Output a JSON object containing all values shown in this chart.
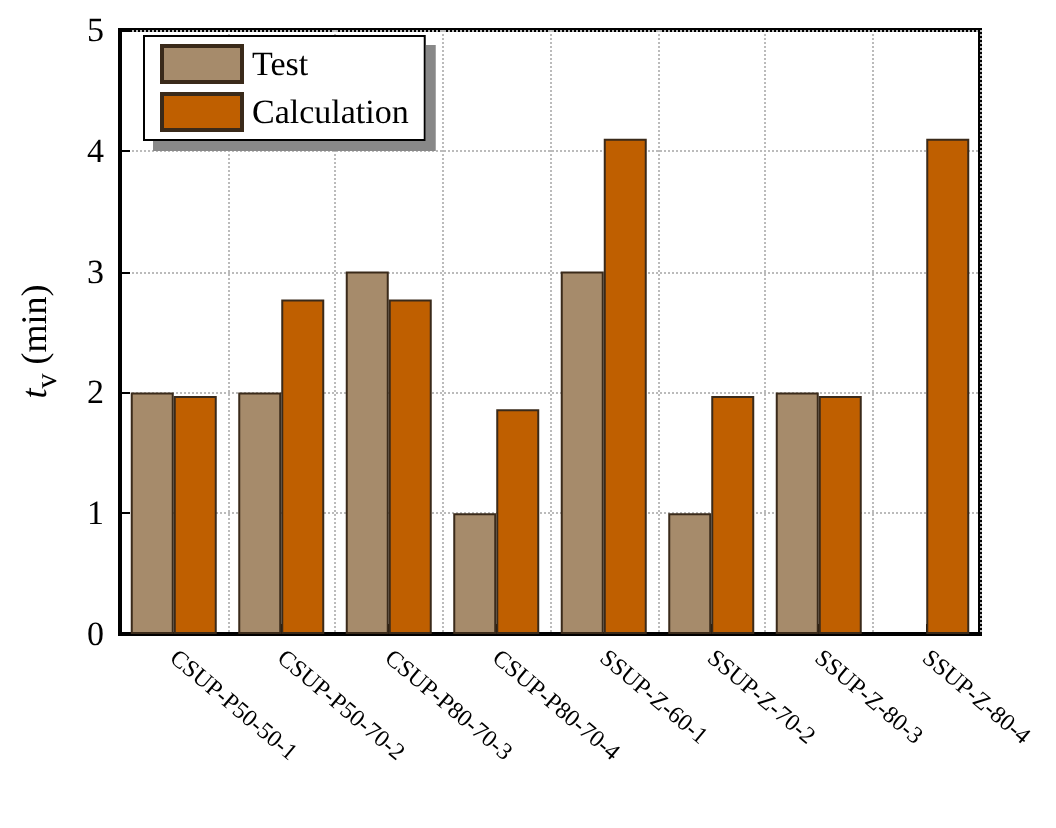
{
  "chart_data": {
    "type": "bar",
    "ylabel": "t$_{v}$ (min)",
    "categories": [
      "CSUP-P50-50-1",
      "CSUP-P50-70-2",
      "CSUP-P80-70-3",
      "CSUP-P80-70-4",
      "SSUP-Z-60-1",
      "SSUP-Z-70-2",
      "SSUP-Z-80-3",
      "SSUP-Z-80-4"
    ],
    "series": [
      {
        "name": "Test",
        "color": "#a68b6b",
        "values": [
          2,
          2,
          3,
          1,
          3,
          1,
          2,
          null
        ]
      },
      {
        "name": "Calculation",
        "color": "#bf5f00",
        "values": [
          1.97,
          2.77,
          2.77,
          1.86,
          4.1,
          1.97,
          1.97,
          4.1
        ]
      }
    ],
    "ylim": [
      0,
      5
    ],
    "yticks": [
      0,
      1,
      2,
      3,
      4,
      5
    ],
    "grid": true,
    "legend": "top left"
  }
}
